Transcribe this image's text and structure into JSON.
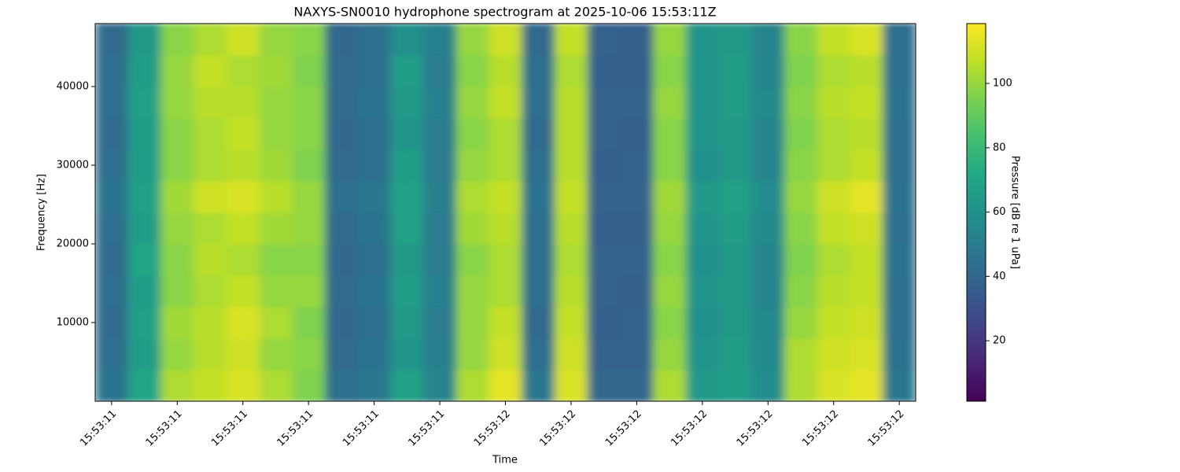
{
  "chart_data": {
    "type": "heatmap",
    "title": "NAXYS-SN0010 hydrophone spectrogram at 2025-10-06 15:53:11Z",
    "x_label": "Time",
    "y_label": "Frequency [Hz]",
    "colorbar_label": "Pressure [dB re 1 uPa]",
    "colormap": "viridis",
    "clim": [
      1.2,
      118.6
    ],
    "colorbar_ticks": [
      20,
      40,
      60,
      80,
      100
    ],
    "xlim": [
      11.375,
      12.625
    ],
    "xticks": [
      {
        "value": 11.4,
        "label": "15:53:11"
      },
      {
        "value": 11.5,
        "label": "15:53:11"
      },
      {
        "value": 11.6,
        "label": "15:53:11"
      },
      {
        "value": 11.7,
        "label": "15:53:11"
      },
      {
        "value": 11.8,
        "label": "15:53:11"
      },
      {
        "value": 11.9,
        "label": "15:53:11"
      },
      {
        "value": 12.0,
        "label": "15:53:12"
      },
      {
        "value": 12.1,
        "label": "15:53:12"
      },
      {
        "value": 12.2,
        "label": "15:53:12"
      },
      {
        "value": 12.3,
        "label": "15:53:12"
      },
      {
        "value": 12.4,
        "label": "15:53:12"
      },
      {
        "value": 12.5,
        "label": "15:53:12"
      },
      {
        "value": 12.6,
        "label": "15:53:12"
      }
    ],
    "ylim": [
      0,
      48000
    ],
    "yticks": [
      10000,
      20000,
      30000,
      40000
    ],
    "x": [
      11.4,
      11.45,
      11.5,
      11.55,
      11.6,
      11.65,
      11.7,
      11.75,
      11.8,
      11.85,
      11.9,
      11.95,
      12.0,
      12.05,
      12.1,
      12.15,
      12.2,
      12.25,
      12.3,
      12.35,
      12.4,
      12.45,
      12.5,
      12.55,
      12.6
    ],
    "y": [
      2000,
      6000,
      10000,
      14000,
      18000,
      22000,
      26000,
      30000,
      34000,
      38000,
      42000,
      46000
    ],
    "z": [
      [
        46,
        70,
        104,
        108,
        112,
        104,
        96,
        44,
        48,
        68,
        54,
        104,
        114,
        48,
        112,
        40,
        40,
        104,
        64,
        66,
        58,
        104,
        112,
        114,
        48
      ],
      [
        44,
        66,
        100,
        106,
        110,
        100,
        98,
        42,
        46,
        62,
        52,
        100,
        110,
        44,
        110,
        38,
        38,
        100,
        62,
        66,
        56,
        104,
        110,
        112,
        46
      ],
      [
        42,
        68,
        102,
        106,
        112,
        104,
        96,
        40,
        44,
        64,
        50,
        100,
        108,
        42,
        108,
        36,
        38,
        98,
        60,
        64,
        56,
        100,
        108,
        110,
        44
      ],
      [
        44,
        66,
        98,
        104,
        108,
        100,
        100,
        42,
        46,
        66,
        52,
        100,
        104,
        44,
        106,
        38,
        36,
        100,
        62,
        64,
        54,
        98,
        106,
        108,
        44
      ],
      [
        42,
        70,
        98,
        106,
        104,
        98,
        98,
        40,
        44,
        64,
        50,
        98,
        104,
        44,
        104,
        38,
        38,
        98,
        60,
        64,
        54,
        96,
        104,
        108,
        46
      ],
      [
        44,
        66,
        100,
        104,
        108,
        102,
        100,
        42,
        46,
        68,
        50,
        102,
        106,
        44,
        106,
        36,
        36,
        100,
        62,
        66,
        56,
        98,
        108,
        110,
        44
      ],
      [
        46,
        68,
        102,
        110,
        112,
        106,
        100,
        44,
        48,
        68,
        52,
        104,
        108,
        46,
        108,
        38,
        38,
        102,
        64,
        68,
        58,
        100,
        110,
        114,
        46
      ],
      [
        44,
        66,
        98,
        104,
        106,
        102,
        96,
        42,
        44,
        66,
        50,
        100,
        104,
        44,
        106,
        36,
        38,
        98,
        60,
        64,
        54,
        98,
        104,
        108,
        44
      ],
      [
        42,
        66,
        98,
        104,
        108,
        100,
        98,
        40,
        44,
        62,
        50,
        98,
        104,
        42,
        106,
        38,
        36,
        98,
        62,
        64,
        54,
        96,
        104,
        106,
        44
      ],
      [
        44,
        68,
        100,
        106,
        106,
        100,
        98,
        42,
        46,
        64,
        52,
        100,
        108,
        44,
        106,
        38,
        38,
        100,
        62,
        66,
        56,
        98,
        106,
        108,
        46
      ],
      [
        44,
        66,
        100,
        108,
        104,
        102,
        96,
        42,
        44,
        66,
        50,
        98,
        106,
        44,
        104,
        36,
        36,
        98,
        62,
        66,
        54,
        96,
        104,
        106,
        44
      ],
      [
        42,
        64,
        98,
        104,
        110,
        100,
        98,
        40,
        44,
        60,
        52,
        100,
        110,
        42,
        108,
        38,
        36,
        100,
        62,
        64,
        54,
        98,
        108,
        112,
        44
      ]
    ]
  }
}
